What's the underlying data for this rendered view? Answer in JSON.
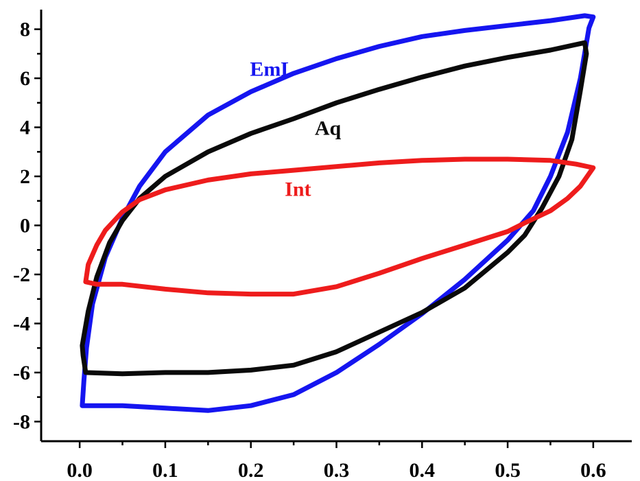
{
  "chart_data": {
    "type": "line",
    "title": "",
    "xlabel": "",
    "ylabel": "",
    "xlim": [
      -0.045,
      0.645
    ],
    "ylim": [
      -8.8,
      8.8
    ],
    "x_ticks": [
      {
        "value": 0.0,
        "label": "0.0"
      },
      {
        "value": 0.1,
        "label": "0.1"
      },
      {
        "value": 0.2,
        "label": "0.2"
      },
      {
        "value": 0.3,
        "label": "0.3"
      },
      {
        "value": 0.4,
        "label": "0.4"
      },
      {
        "value": 0.5,
        "label": "0.5"
      },
      {
        "value": 0.6,
        "label": "0.6"
      }
    ],
    "y_ticks": [
      {
        "value": 8,
        "label": "8"
      },
      {
        "value": 6,
        "label": "6"
      },
      {
        "value": 4,
        "label": "4"
      },
      {
        "value": 2,
        "label": "2"
      },
      {
        "value": 0,
        "label": "0"
      },
      {
        "value": -2,
        "label": "-2"
      },
      {
        "value": -4,
        "label": "-4"
      },
      {
        "value": -6,
        "label": "-6"
      },
      {
        "value": -8,
        "label": "-8"
      }
    ],
    "x_minor_step": 0.05,
    "y_minor_step": 1,
    "grid": false,
    "legend": "none",
    "series": [
      {
        "name": "EmL",
        "color": "#1515f0",
        "label_at": [
          0.225,
          6.1
        ],
        "points": [
          [
            0.003,
            -7.35
          ],
          [
            0.05,
            -7.35
          ],
          [
            0.1,
            -7.45
          ],
          [
            0.15,
            -7.55
          ],
          [
            0.2,
            -7.35
          ],
          [
            0.25,
            -6.9
          ],
          [
            0.3,
            -6.0
          ],
          [
            0.35,
            -4.85
          ],
          [
            0.4,
            -3.6
          ],
          [
            0.45,
            -2.2
          ],
          [
            0.5,
            -0.6
          ],
          [
            0.53,
            0.6
          ],
          [
            0.55,
            2.0
          ],
          [
            0.57,
            3.8
          ],
          [
            0.585,
            6.0
          ],
          [
            0.595,
            8.05
          ],
          [
            0.6,
            8.5
          ],
          [
            0.59,
            8.55
          ],
          [
            0.55,
            8.35
          ],
          [
            0.5,
            8.15
          ],
          [
            0.45,
            7.95
          ],
          [
            0.4,
            7.7
          ],
          [
            0.35,
            7.3
          ],
          [
            0.3,
            6.8
          ],
          [
            0.25,
            6.2
          ],
          [
            0.2,
            5.45
          ],
          [
            0.15,
            4.5
          ],
          [
            0.1,
            3.0
          ],
          [
            0.07,
            1.6
          ],
          [
            0.05,
            0.3
          ],
          [
            0.03,
            -1.3
          ],
          [
            0.015,
            -3.2
          ],
          [
            0.008,
            -5.0
          ],
          [
            0.005,
            -6.3
          ],
          [
            0.003,
            -7.35
          ]
        ]
      },
      {
        "name": "Aq",
        "color": "#0a0a0a",
        "label_at": [
          0.29,
          3.7
        ],
        "points": [
          [
            0.003,
            -4.9
          ],
          [
            0.01,
            -3.5
          ],
          [
            0.02,
            -2.1
          ],
          [
            0.035,
            -0.7
          ],
          [
            0.05,
            0.2
          ],
          [
            0.07,
            1.1
          ],
          [
            0.1,
            2.0
          ],
          [
            0.15,
            3.0
          ],
          [
            0.2,
            3.75
          ],
          [
            0.25,
            4.35
          ],
          [
            0.3,
            5.0
          ],
          [
            0.35,
            5.55
          ],
          [
            0.4,
            6.05
          ],
          [
            0.45,
            6.5
          ],
          [
            0.5,
            6.85
          ],
          [
            0.55,
            7.15
          ],
          [
            0.59,
            7.45
          ],
          [
            0.592,
            7.0
          ],
          [
            0.585,
            5.5
          ],
          [
            0.575,
            3.5
          ],
          [
            0.56,
            2.0
          ],
          [
            0.54,
            0.7
          ],
          [
            0.52,
            -0.4
          ],
          [
            0.5,
            -1.1
          ],
          [
            0.45,
            -2.55
          ],
          [
            0.4,
            -3.55
          ],
          [
            0.35,
            -4.35
          ],
          [
            0.3,
            -5.15
          ],
          [
            0.25,
            -5.7
          ],
          [
            0.2,
            -5.9
          ],
          [
            0.15,
            -6.0
          ],
          [
            0.1,
            -6.0
          ],
          [
            0.05,
            -6.05
          ],
          [
            0.007,
            -6.0
          ],
          [
            0.004,
            -5.3
          ],
          [
            0.003,
            -4.9
          ]
        ]
      },
      {
        "name": "Int",
        "color": "#ee1c1c",
        "label_at": [
          0.255,
          1.2
        ],
        "points": [
          [
            0.007,
            -2.3
          ],
          [
            0.01,
            -1.6
          ],
          [
            0.02,
            -0.8
          ],
          [
            0.03,
            -0.2
          ],
          [
            0.05,
            0.55
          ],
          [
            0.07,
            1.05
          ],
          [
            0.1,
            1.45
          ],
          [
            0.15,
            1.85
          ],
          [
            0.2,
            2.1
          ],
          [
            0.25,
            2.25
          ],
          [
            0.3,
            2.4
          ],
          [
            0.35,
            2.55
          ],
          [
            0.4,
            2.65
          ],
          [
            0.45,
            2.7
          ],
          [
            0.5,
            2.7
          ],
          [
            0.55,
            2.65
          ],
          [
            0.58,
            2.5
          ],
          [
            0.6,
            2.35
          ],
          [
            0.585,
            1.6
          ],
          [
            0.57,
            1.1
          ],
          [
            0.55,
            0.6
          ],
          [
            0.52,
            0.1
          ],
          [
            0.5,
            -0.25
          ],
          [
            0.45,
            -0.8
          ],
          [
            0.4,
            -1.35
          ],
          [
            0.35,
            -1.95
          ],
          [
            0.3,
            -2.5
          ],
          [
            0.25,
            -2.8
          ],
          [
            0.2,
            -2.8
          ],
          [
            0.15,
            -2.75
          ],
          [
            0.1,
            -2.6
          ],
          [
            0.05,
            -2.4
          ],
          [
            0.02,
            -2.4
          ],
          [
            0.007,
            -2.3
          ]
        ]
      }
    ]
  }
}
